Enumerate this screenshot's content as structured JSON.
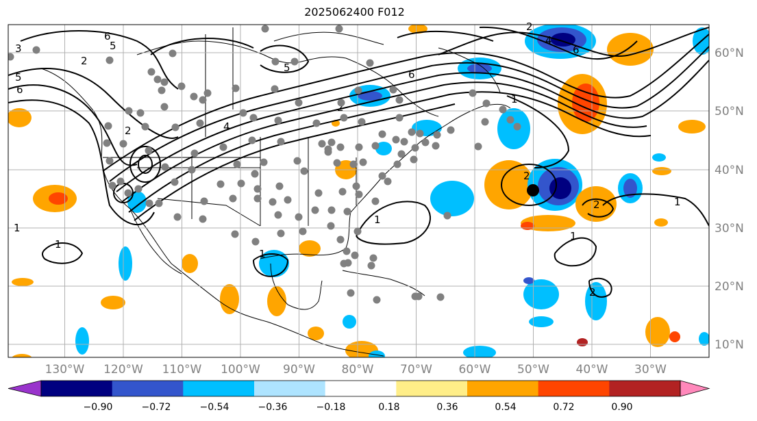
{
  "title": "2025062400 F012",
  "map": {
    "lon_labels": [
      "130°W",
      "120°W",
      "110°W",
      "100°W",
      "90°W",
      "80°W",
      "70°W",
      "60°W",
      "50°W",
      "40°W",
      "30°W"
    ],
    "lat_labels": [
      "60°N",
      "50°N",
      "40°N",
      "30°N",
      "20°N",
      "10°N"
    ],
    "grid": true,
    "contour_labels": [
      "6",
      "5",
      "3",
      "2",
      "5",
      "6",
      "2",
      "6",
      "5",
      "4",
      "2",
      "2",
      "1",
      "1",
      "1",
      "1",
      "1",
      "1",
      "2",
      "1",
      "2",
      "6",
      "4",
      "2"
    ]
  },
  "colorbar": {
    "ticks": [
      "−0.90",
      "−0.72",
      "−0.54",
      "−0.36",
      "−0.18",
      "0.18",
      "0.36",
      "0.54",
      "0.72",
      "0.90"
    ],
    "colors": [
      "#9933cc",
      "#000080",
      "#3355cc",
      "#00bfff",
      "#aee4ff",
      "#ffffff",
      "#ffee88",
      "#ffa500",
      "#ff4500",
      "#b22222",
      "#ff88bb"
    ]
  }
}
